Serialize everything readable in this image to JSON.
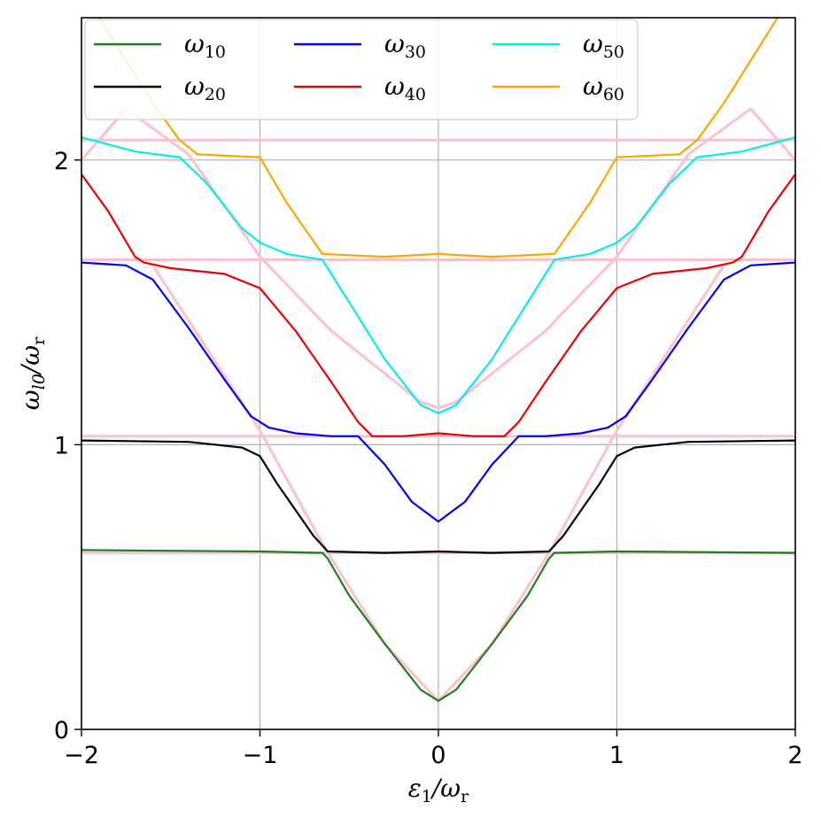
{
  "chart_data": {
    "type": "line",
    "title": "",
    "xlabel_main": "ε",
    "xlabel_sub": "1",
    "xlabel_div": "/ω",
    "xlabel_sub2": "r",
    "ylabel_main": "ω",
    "ylabel_sub": "l0",
    "ylabel_div": "/ω",
    "ylabel_sub2": "r",
    "xlim": [
      -2,
      2
    ],
    "ylim": [
      0,
      2.5
    ],
    "xticks": [
      -2,
      -1,
      0,
      1,
      2
    ],
    "xtick_labels": [
      "−2",
      "−1",
      "0",
      "1",
      "2"
    ],
    "yticks": [
      0,
      1,
      2
    ],
    "ytick_labels": [
      "0",
      "1",
      "2"
    ],
    "grid": true,
    "legend_position": "top",
    "colors": {
      "w10": "#1e7d1e",
      "w20": "#000000",
      "w30": "#0000ee",
      "w40": "#ee0000",
      "w50": "#00eeee",
      "w60": "#ffa500",
      "guide": "#ffc0cb",
      "grid": "#b0b0b0"
    },
    "series": [
      {
        "key": "w10",
        "name_main": "ω",
        "name_sub": "10",
        "color": "#1e7d1e",
        "x": [
          -2,
          -1,
          -0.65,
          -0.62,
          -0.5,
          -0.3,
          -0.1,
          0,
          0.1,
          0.3,
          0.5,
          0.62,
          0.65,
          1,
          2
        ],
        "y": [
          0.63,
          0.625,
          0.62,
          0.6,
          0.47,
          0.3,
          0.14,
          0.1,
          0.14,
          0.3,
          0.47,
          0.6,
          0.62,
          0.625,
          0.62
        ]
      },
      {
        "key": "w20",
        "name_main": "ω",
        "name_sub": "20",
        "color": "#000000",
        "x": [
          -2,
          -1.4,
          -1.1,
          -1.0,
          -0.9,
          -0.7,
          -0.62,
          -0.3,
          0,
          0.3,
          0.62,
          0.7,
          0.9,
          1.0,
          1.1,
          1.4,
          2
        ],
        "y": [
          1.015,
          1.01,
          0.99,
          0.96,
          0.86,
          0.68,
          0.625,
          0.62,
          0.625,
          0.62,
          0.625,
          0.68,
          0.86,
          0.96,
          0.99,
          1.01,
          1.015
        ]
      },
      {
        "key": "w30",
        "name_main": "ω",
        "name_sub": "30",
        "color": "#0000ee",
        "x": [
          -2,
          -1.75,
          -1.6,
          -1.4,
          -1.2,
          -1.05,
          -0.95,
          -0.8,
          -0.6,
          -0.45,
          -0.3,
          -0.15,
          0,
          0.15,
          0.3,
          0.45,
          0.6,
          0.8,
          0.95,
          1.05,
          1.2,
          1.4,
          1.6,
          1.75,
          2
        ],
        "y": [
          1.64,
          1.63,
          1.58,
          1.41,
          1.23,
          1.1,
          1.06,
          1.04,
          1.03,
          1.03,
          0.93,
          0.8,
          0.73,
          0.8,
          0.93,
          1.03,
          1.03,
          1.04,
          1.06,
          1.1,
          1.23,
          1.41,
          1.58,
          1.63,
          1.64
        ]
      },
      {
        "key": "w40",
        "name_main": "ω",
        "name_sub": "40",
        "color": "#ee0000",
        "x": [
          -2,
          -1.85,
          -1.7,
          -1.65,
          -1.5,
          -1.2,
          -1.0,
          -0.8,
          -0.6,
          -0.45,
          -0.37,
          -0.2,
          0,
          0.2,
          0.37,
          0.45,
          0.6,
          0.8,
          1.0,
          1.2,
          1.5,
          1.65,
          1.7,
          1.85,
          2
        ],
        "y": [
          1.95,
          1.82,
          1.66,
          1.64,
          1.62,
          1.6,
          1.55,
          1.4,
          1.22,
          1.08,
          1.03,
          1.03,
          1.04,
          1.03,
          1.03,
          1.08,
          1.22,
          1.4,
          1.55,
          1.6,
          1.62,
          1.64,
          1.66,
          1.82,
          1.95
        ]
      },
      {
        "key": "w50",
        "name_main": "ω",
        "name_sub": "50",
        "color": "#00eeee",
        "x": [
          -2,
          -1.7,
          -1.45,
          -1.3,
          -1.1,
          -1.0,
          -0.85,
          -0.65,
          -0.5,
          -0.3,
          -0.1,
          0,
          0.1,
          0.3,
          0.5,
          0.65,
          0.85,
          1.0,
          1.1,
          1.3,
          1.45,
          1.7,
          2
        ],
        "y": [
          2.08,
          2.03,
          2.01,
          1.92,
          1.76,
          1.71,
          1.67,
          1.65,
          1.5,
          1.3,
          1.14,
          1.11,
          1.14,
          1.3,
          1.5,
          1.65,
          1.67,
          1.71,
          1.76,
          1.92,
          2.01,
          2.03,
          2.08
        ]
      },
      {
        "key": "w60",
        "name_main": "ω",
        "name_sub": "60",
        "color": "#ffa500",
        "x": [
          -1.9,
          -1.6,
          -1.45,
          -1.35,
          -1.0,
          -0.85,
          -0.65,
          -0.3,
          0,
          0.3,
          0.65,
          0.85,
          1.0,
          1.35,
          1.45,
          1.6,
          1.9
        ],
        "y": [
          2.5,
          2.2,
          2.07,
          2.02,
          2.01,
          1.85,
          1.67,
          1.66,
          1.67,
          1.66,
          1.67,
          1.85,
          2.01,
          2.02,
          2.07,
          2.2,
          2.5
        ]
      }
    ],
    "guides": [
      {
        "x": [
          -2,
          2
        ],
        "y": [
          2.07,
          2.07
        ]
      },
      {
        "x": [
          -2,
          2
        ],
        "y": [
          1.65,
          1.65
        ]
      },
      {
        "x": [
          -2,
          2
        ],
        "y": [
          1.03,
          1.03
        ]
      },
      {
        "x": [
          -2,
          2
        ],
        "y": [
          0.62,
          0.62
        ]
      },
      {
        "x": [
          -2,
          -1.75,
          -1.4,
          -1.0,
          -0.6,
          -0.3,
          -0.1,
          0,
          0.1,
          0.3,
          0.6,
          1.0,
          1.4,
          1.75,
          2
        ],
        "y": [
          2.0,
          2.18,
          2.02,
          1.66,
          1.4,
          1.25,
          1.15,
          1.13,
          1.15,
          1.25,
          1.4,
          1.66,
          2.02,
          2.18,
          2.0
        ]
      },
      {
        "x": [
          -1.6,
          -1.0,
          -0.63,
          -0.3,
          0,
          0.3,
          0.63,
          1.0,
          1.6
        ],
        "y": [
          1.63,
          1.05,
          0.63,
          0.3,
          0.1,
          0.3,
          0.63,
          1.05,
          1.63
        ]
      }
    ]
  }
}
